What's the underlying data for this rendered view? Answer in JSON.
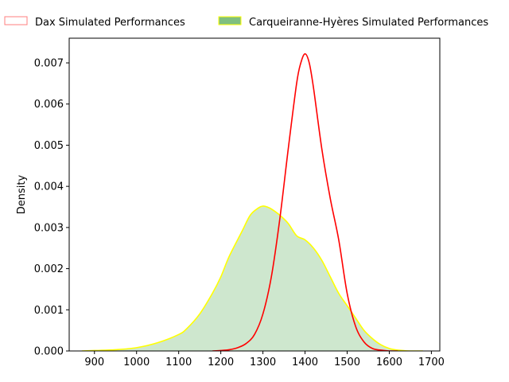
{
  "chart_data": {
    "type": "area",
    "title": "",
    "xlabel": "",
    "ylabel": "Density",
    "xlim": [
      840,
      1720
    ],
    "ylim": [
      0,
      0.0076
    ],
    "x_ticks": [
      900,
      1000,
      1100,
      1200,
      1300,
      1400,
      1500,
      1600,
      1700
    ],
    "y_ticks": [
      0.0,
      0.001,
      0.002,
      0.003,
      0.004,
      0.005,
      0.006,
      0.007
    ],
    "y_tick_labels": [
      "0.000",
      "0.001",
      "0.002",
      "0.003",
      "0.004",
      "0.005",
      "0.006",
      "0.007"
    ],
    "grid": false,
    "legend_placement": "top-center, outside plot",
    "legend": [
      {
        "name": "Dax Simulated Performances",
        "fill": "none",
        "edge": "#ff7f7f"
      },
      {
        "name": "Carqueiranne-Hyères Simulated Performances",
        "fill": "#7fbf7f",
        "edge": "#ffff00"
      }
    ],
    "series": [
      {
        "name": "Dax Simulated Performances",
        "color": "#ff0000",
        "fill": "#ff0000",
        "fill_opacity": 0.0,
        "x": [
          1180,
          1200,
          1220,
          1240,
          1260,
          1280,
          1300,
          1320,
          1340,
          1360,
          1380,
          1390,
          1400,
          1410,
          1420,
          1440,
          1460,
          1480,
          1500,
          1520,
          1540,
          1560,
          1580,
          1600,
          1620
        ],
        "y": [
          0.0,
          1e-05,
          3e-05,
          8e-05,
          0.00018,
          0.0004,
          0.0009,
          0.0018,
          0.0032,
          0.0049,
          0.0065,
          0.007,
          0.00722,
          0.007,
          0.0064,
          0.0049,
          0.0037,
          0.0027,
          0.0014,
          0.0006,
          0.00022,
          6e-05,
          2e-05,
          0.0,
          0.0
        ]
      },
      {
        "name": "Carqueiranne-Hyères Simulated Performances",
        "color": "#ffff00",
        "fill": "#7fbf7f",
        "fill_opacity": 0.38,
        "x": [
          870,
          900,
          950,
          1000,
          1050,
          1100,
          1120,
          1150,
          1180,
          1200,
          1220,
          1250,
          1270,
          1290,
          1300,
          1310,
          1320,
          1340,
          1360,
          1380,
          1400,
          1420,
          1440,
          1460,
          1480,
          1500,
          1520,
          1540,
          1560,
          1580,
          1600,
          1620,
          1650,
          1680
        ],
        "y": [
          0.0,
          1e-05,
          3e-05,
          8e-05,
          0.0002,
          0.0004,
          0.00055,
          0.0009,
          0.0014,
          0.0018,
          0.0023,
          0.0029,
          0.0033,
          0.00348,
          0.00352,
          0.0035,
          0.00345,
          0.0033,
          0.0031,
          0.0028,
          0.0027,
          0.0025,
          0.0022,
          0.0018,
          0.0014,
          0.0011,
          0.0008,
          0.0005,
          0.0003,
          0.00015,
          6e-05,
          2e-05,
          0.0,
          0.0
        ]
      }
    ]
  }
}
